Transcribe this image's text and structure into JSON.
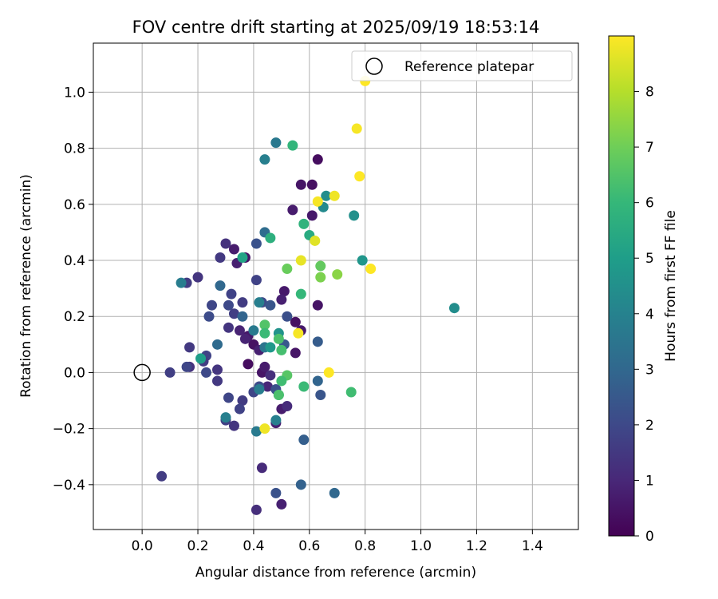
{
  "chart_data": {
    "type": "scatter",
    "title": "FOV centre drift starting at 2025/09/19 18:53:14",
    "xlabel": "Angular distance from reference (arcmin)",
    "ylabel": "Rotation from reference (arcmin)",
    "xlim": [
      -0.175,
      1.565
    ],
    "ylim": [
      -0.56,
      1.175
    ],
    "x_ticks": [
      0.0,
      0.2,
      0.4,
      0.6,
      0.8,
      1.0,
      1.2,
      1.4
    ],
    "x_tick_labels": [
      "0.0",
      "0.2",
      "0.4",
      "0.6",
      "0.8",
      "1.0",
      "1.2",
      "1.4"
    ],
    "y_ticks": [
      -0.4,
      -0.2,
      0.0,
      0.2,
      0.4,
      0.6,
      0.8,
      1.0
    ],
    "y_tick_labels": [
      "−0.4",
      "−0.2",
      "0.0",
      "0.2",
      "0.4",
      "0.6",
      "0.8",
      "1.0"
    ],
    "grid": true,
    "legend": {
      "position": "top-right",
      "entries": [
        "Reference platepar"
      ]
    },
    "reference_point": {
      "x": 0.0,
      "y": 0.0,
      "label": "Reference platepar"
    },
    "colorbar": {
      "label": "Hours from first FF file",
      "min": 0,
      "max": 9,
      "ticks": [
        0,
        1,
        2,
        3,
        4,
        5,
        6,
        7,
        8
      ],
      "tick_labels": [
        "0",
        "1",
        "2",
        "3",
        "4",
        "5",
        "6",
        "7",
        "8"
      ],
      "colormap": "viridis",
      "colormap_stops": [
        "#440154",
        "#482878",
        "#3e4989",
        "#31688e",
        "#26828e",
        "#1f9e89",
        "#35b779",
        "#6ece58",
        "#b5de2b",
        "#fde725"
      ]
    },
    "points": [
      [
        0.63,
        0.76,
        0.3
      ],
      [
        0.61,
        0.67,
        0.4
      ],
      [
        0.57,
        0.67,
        0.5
      ],
      [
        0.61,
        0.56,
        0.6
      ],
      [
        0.54,
        0.58,
        0.7
      ],
      [
        0.37,
        0.41,
        0.5
      ],
      [
        0.33,
        0.44,
        0.7
      ],
      [
        0.34,
        0.39,
        0.8
      ],
      [
        0.51,
        0.29,
        0.6
      ],
      [
        0.5,
        0.26,
        0.8
      ],
      [
        0.63,
        0.24,
        0.5
      ],
      [
        0.55,
        0.18,
        0.4
      ],
      [
        0.57,
        0.15,
        0.6
      ],
      [
        0.55,
        0.07,
        0.5
      ],
      [
        0.4,
        0.1,
        0.4
      ],
      [
        0.42,
        0.08,
        0.8
      ],
      [
        0.38,
        0.13,
        0.6
      ],
      [
        0.37,
        0.12,
        0.9
      ],
      [
        0.38,
        0.03,
        0.3
      ],
      [
        0.43,
        0.0,
        0.5
      ],
      [
        0.44,
        0.02,
        0.7
      ],
      [
        0.35,
        0.15,
        0.9
      ],
      [
        0.43,
        -0.34,
        1.1
      ],
      [
        0.5,
        -0.47,
        0.8
      ],
      [
        0.41,
        -0.49,
        1.2
      ],
      [
        0.48,
        -0.18,
        0.8
      ],
      [
        0.5,
        -0.13,
        0.7
      ],
      [
        0.45,
        -0.05,
        1.0
      ],
      [
        0.46,
        -0.01,
        1.2
      ],
      [
        0.52,
        -0.12,
        1.1
      ],
      [
        0.3,
        0.46,
        1.3
      ],
      [
        0.28,
        0.41,
        1.5
      ],
      [
        0.2,
        0.34,
        1.4
      ],
      [
        0.16,
        0.32,
        1.6
      ],
      [
        0.32,
        0.28,
        1.8
      ],
      [
        0.36,
        0.25,
        1.6
      ],
      [
        0.25,
        0.24,
        1.9
      ],
      [
        0.31,
        0.24,
        2.0
      ],
      [
        0.24,
        0.2,
        2.1
      ],
      [
        0.33,
        0.21,
        1.7
      ],
      [
        0.31,
        0.16,
        1.4
      ],
      [
        0.17,
        0.09,
        1.5
      ],
      [
        0.23,
        0.06,
        1.8
      ],
      [
        0.22,
        0.04,
        1.6
      ],
      [
        0.1,
        0.0,
        1.7
      ],
      [
        0.17,
        0.02,
        1.3
      ],
      [
        0.16,
        0.02,
        1.9
      ],
      [
        0.27,
        0.01,
        1.4
      ],
      [
        0.23,
        0.0,
        2.0
      ],
      [
        0.27,
        -0.03,
        1.5
      ],
      [
        0.31,
        -0.09,
        1.9
      ],
      [
        0.36,
        -0.1,
        1.6
      ],
      [
        0.35,
        -0.13,
        1.8
      ],
      [
        0.3,
        -0.17,
        1.7
      ],
      [
        0.33,
        -0.19,
        1.4
      ],
      [
        0.07,
        -0.37,
        1.6
      ],
      [
        0.4,
        -0.07,
        1.9
      ],
      [
        0.42,
        -0.05,
        2.1
      ],
      [
        0.48,
        -0.06,
        2.2
      ],
      [
        0.48,
        -0.43,
        2.3
      ],
      [
        0.41,
        0.46,
        2.3
      ],
      [
        0.43,
        0.25,
        2.0
      ],
      [
        0.46,
        0.24,
        2.4
      ],
      [
        0.41,
        0.33,
        1.8
      ],
      [
        0.52,
        0.2,
        2.2
      ],
      [
        0.51,
        0.1,
        2.5
      ],
      [
        0.64,
        -0.08,
        2.4
      ],
      [
        0.58,
        -0.24,
        2.7
      ],
      [
        0.57,
        -0.4,
        2.8
      ],
      [
        0.69,
        -0.43,
        3.0
      ],
      [
        0.63,
        0.11,
        2.6
      ],
      [
        0.63,
        -0.03,
        2.9
      ],
      [
        0.36,
        0.2,
        2.9
      ],
      [
        0.28,
        0.31,
        3.0
      ],
      [
        0.27,
        0.1,
        3.1
      ],
      [
        0.44,
        0.5,
        3.2
      ],
      [
        0.48,
        0.82,
        3.6
      ],
      [
        0.44,
        0.76,
        3.9
      ],
      [
        0.14,
        0.32,
        3.8
      ],
      [
        0.4,
        0.15,
        3.7
      ],
      [
        0.42,
        0.25,
        3.9
      ],
      [
        0.44,
        0.09,
        3.5
      ],
      [
        0.41,
        -0.21,
        3.7
      ],
      [
        0.42,
        -0.06,
        3.8
      ],
      [
        0.48,
        -0.17,
        3.9
      ],
      [
        0.3,
        -0.16,
        3.9
      ],
      [
        0.65,
        0.59,
        4.3
      ],
      [
        0.66,
        0.63,
        4.4
      ],
      [
        0.76,
        0.56,
        4.5
      ],
      [
        0.79,
        0.4,
        4.7
      ],
      [
        1.12,
        0.23,
        4.4
      ],
      [
        0.49,
        0.14,
        4.6
      ],
      [
        0.46,
        0.09,
        4.8
      ],
      [
        0.49,
        -0.08,
        5.1
      ],
      [
        0.21,
        0.05,
        5.0
      ],
      [
        0.36,
        0.41,
        5.2
      ],
      [
        0.58,
        0.53,
        5.8
      ],
      [
        0.6,
        0.49,
        5.5
      ],
      [
        0.54,
        0.81,
        5.9
      ],
      [
        0.46,
        0.48,
        5.7
      ],
      [
        0.57,
        0.28,
        6.0
      ],
      [
        0.58,
        -0.05,
        6.1
      ],
      [
        0.75,
        -0.07,
        6.2
      ],
      [
        0.5,
        0.08,
        6.3
      ],
      [
        0.49,
        0.12,
        6.4
      ],
      [
        0.44,
        0.17,
        6.5
      ],
      [
        0.44,
        0.14,
        6.1
      ],
      [
        0.52,
        -0.01,
        6.6
      ],
      [
        0.5,
        -0.03,
        6.2
      ],
      [
        0.49,
        -0.08,
        6.4
      ],
      [
        0.52,
        0.37,
        6.9
      ],
      [
        0.64,
        0.38,
        6.8
      ],
      [
        0.64,
        0.34,
        7.2
      ],
      [
        0.7,
        0.35,
        7.4
      ],
      [
        0.62,
        0.47,
        8.6
      ],
      [
        0.57,
        0.4,
        8.7
      ],
      [
        0.56,
        0.14,
        8.9
      ],
      [
        0.44,
        -0.2,
        8.8
      ],
      [
        0.67,
        0.0,
        9.0
      ],
      [
        0.63,
        0.61,
        8.9
      ],
      [
        0.69,
        0.63,
        8.8
      ],
      [
        0.78,
        0.7,
        9.0
      ],
      [
        0.77,
        0.87,
        8.9
      ],
      [
        0.8,
        1.04,
        9.0
      ],
      [
        0.82,
        0.37,
        9.0
      ]
    ]
  }
}
